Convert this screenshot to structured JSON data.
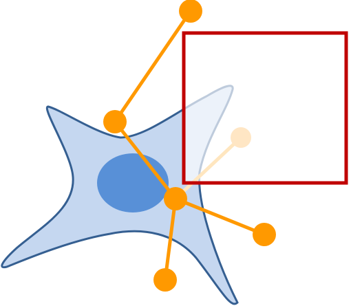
{
  "colors": {
    "background": "#ffffff",
    "cell_fill": "#c5d7f0",
    "cell_outline": "#355f91",
    "nucleus": "#5890d7",
    "link": "#ff9900",
    "node": "#ff9900",
    "faded_link": "#ffe6bf",
    "faded_node": "#ffe6c4",
    "frame": "#c00000"
  },
  "shapes": {
    "cell": "cell-body",
    "nucleus": "nucleus",
    "frame": "selection-frame"
  },
  "nodes": [
    {
      "id": "top-node"
    },
    {
      "id": "upper-left-node"
    },
    {
      "id": "hub-node"
    },
    {
      "id": "right-node"
    },
    {
      "id": "bottom-node"
    },
    {
      "id": "faded-node",
      "faded": true
    }
  ],
  "links": [
    {
      "from": "top-node",
      "to": "upper-left-node"
    },
    {
      "from": "upper-left-node",
      "to": "hub-node"
    },
    {
      "from": "hub-node",
      "to": "right-node"
    },
    {
      "from": "hub-node",
      "to": "bottom-node"
    },
    {
      "from": "hub-node",
      "to": "faded-node",
      "faded": true
    }
  ]
}
